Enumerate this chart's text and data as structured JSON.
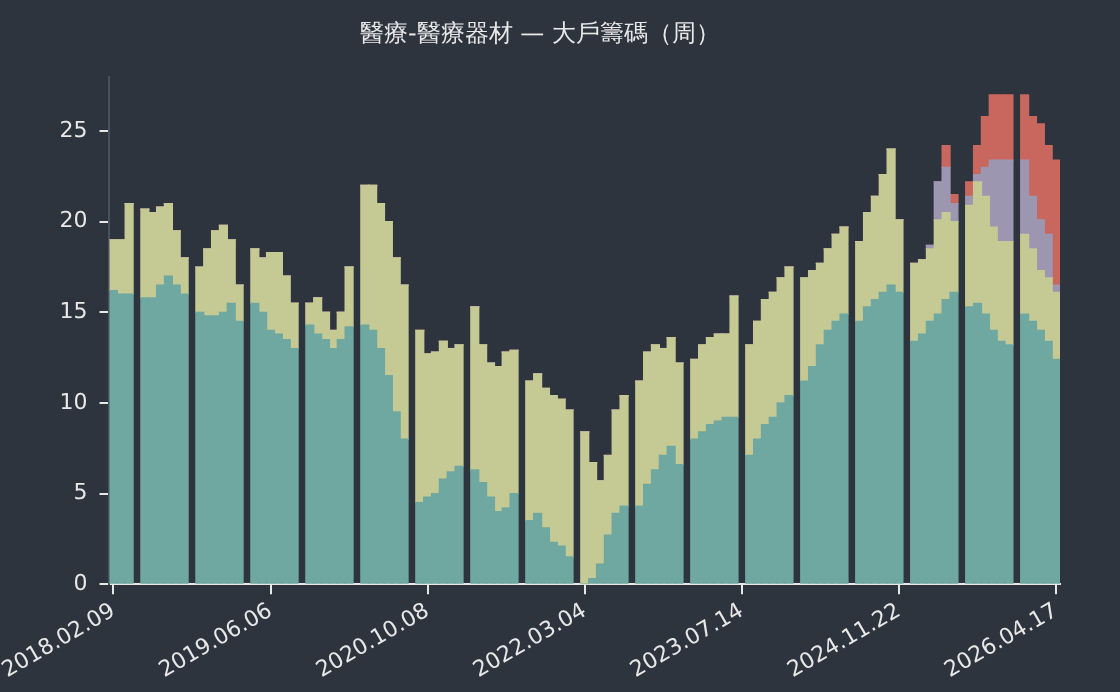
{
  "chart_data": {
    "type": "bar",
    "stacked": true,
    "title": "醫療-醫療器材 — 大戶籌碼（周）",
    "categories": [
      "2018.02.09",
      null,
      null,
      null,
      null,
      null,
      null,
      null,
      null,
      null,
      null,
      null,
      null,
      null,
      null,
      null,
      null,
      null,
      null,
      null,
      "2019.06.06",
      null,
      null,
      null,
      null,
      null,
      null,
      null,
      null,
      null,
      null,
      null,
      null,
      null,
      null,
      null,
      null,
      null,
      null,
      null,
      "2020.10.08",
      null,
      null,
      null,
      null,
      null,
      null,
      null,
      null,
      null,
      null,
      null,
      null,
      null,
      null,
      null,
      null,
      null,
      null,
      null,
      "2022.03.04",
      null,
      null,
      null,
      null,
      null,
      null,
      null,
      null,
      null,
      null,
      null,
      null,
      null,
      null,
      null,
      null,
      null,
      null,
      null,
      "2023.07.14",
      null,
      null,
      null,
      null,
      null,
      null,
      null,
      null,
      null,
      null,
      null,
      null,
      null,
      null,
      null,
      null,
      null,
      null,
      null,
      "2024.11.22",
      null,
      null,
      null,
      null,
      null,
      null,
      null,
      null,
      null,
      null,
      null,
      null,
      null,
      null,
      null,
      null,
      null,
      null,
      null,
      "2026.04.17"
    ],
    "series": [
      {
        "color": "#6fa8a0",
        "values": [
          16.2,
          16,
          16,
          null,
          15.8,
          15.8,
          16.5,
          17,
          16.5,
          16,
          null,
          15,
          14.8,
          14.8,
          15,
          15.5,
          14.5,
          null,
          15.5,
          15,
          14,
          13.8,
          13.5,
          13,
          null,
          14.3,
          13.8,
          13.5,
          13,
          13.5,
          14.2,
          null,
          14.3,
          14,
          13,
          11.5,
          9.5,
          8,
          null,
          4.5,
          4.8,
          5,
          5.8,
          6.2,
          6.5,
          null,
          6.3,
          5.6,
          4.8,
          4,
          4.2,
          5,
          null,
          3.5,
          3.9,
          3.1,
          2.3,
          2.1,
          1.5,
          null,
          0,
          0.3,
          1.1,
          2.7,
          3.9,
          4.3,
          null,
          4.3,
          5.5,
          6.3,
          7.1,
          7.6,
          6.6,
          null,
          8,
          8.4,
          8.8,
          9,
          9.2,
          9.2,
          null,
          7.1,
          8,
          8.8,
          9.2,
          10,
          10.4,
          null,
          11.2,
          12,
          13.2,
          14,
          14.5,
          14.9,
          null,
          14.5,
          15.3,
          15.7,
          16.1,
          16.5,
          16.1,
          null,
          13.4,
          13.8,
          14.5,
          14.9,
          15.7,
          16.1,
          null,
          15.3,
          15.5,
          14.9,
          14,
          13.4,
          13.2,
          null,
          14.9,
          14.5,
          14,
          13.4,
          12.4
        ]
      },
      {
        "color": "#c5c994",
        "values": [
          2.8,
          3,
          5,
          null,
          4.9,
          4.7,
          4.3,
          4,
          3,
          2,
          null,
          2.5,
          3.7,
          4.7,
          4.8,
          3.5,
          2,
          null,
          3,
          3,
          4.3,
          4.5,
          3.5,
          2.5,
          null,
          1.2,
          2,
          1.5,
          1,
          1.5,
          3.3,
          null,
          7.7,
          8,
          8,
          8.5,
          8.5,
          8.5,
          null,
          9.5,
          7.9,
          7.8,
          7.6,
          6.8,
          6.7,
          null,
          9,
          7.6,
          7.4,
          8,
          8.6,
          7.9,
          null,
          7.7,
          7.7,
          7.7,
          8.1,
          8.1,
          8.1,
          null,
          8.4,
          6.4,
          4.6,
          4.4,
          5.7,
          6.1,
          null,
          6.9,
          7.3,
          6.9,
          5.9,
          6,
          5.6,
          null,
          4.4,
          4.8,
          4.8,
          4.8,
          4.6,
          6.7,
          null,
          6.1,
          6.5,
          6.9,
          6.9,
          6.9,
          7.1,
          null,
          5.7,
          5.3,
          4.5,
          4.5,
          4.8,
          4.8,
          null,
          4.4,
          5.2,
          5.7,
          6.5,
          7.5,
          4,
          null,
          4.3,
          4.1,
          4,
          5.2,
          4.8,
          3.9,
          null,
          5.6,
          6.7,
          6.5,
          5.7,
          5.5,
          5.7,
          null,
          4.4,
          4,
          3.3,
          3.5,
          3.7
        ]
      },
      {
        "color": "#9c96b0",
        "values": [
          0,
          0,
          0,
          null,
          0,
          0,
          0,
          0,
          0,
          0,
          null,
          0,
          0,
          0,
          0,
          0,
          0,
          null,
          0,
          0,
          0,
          0,
          0,
          0,
          null,
          0,
          0,
          0,
          0,
          0,
          0,
          null,
          0,
          0,
          0,
          0,
          0,
          0,
          null,
          0,
          0,
          0,
          0,
          0,
          0,
          null,
          0,
          0,
          0,
          0,
          0,
          0,
          null,
          0,
          0,
          0,
          0,
          0,
          0,
          null,
          0,
          0,
          0,
          0,
          0,
          0,
          null,
          0,
          0,
          0,
          0,
          0,
          0,
          null,
          0,
          0,
          0,
          0,
          0,
          0,
          null,
          0,
          0,
          0,
          0,
          0,
          0,
          null,
          0,
          0,
          0,
          0,
          0,
          0,
          null,
          0,
          0,
          0,
          0,
          0,
          0,
          null,
          0,
          0,
          0.2,
          2.1,
          2.5,
          1,
          null,
          0.5,
          0.4,
          1.6,
          3.7,
          4.5,
          4.5,
          null,
          4.1,
          2.9,
          2.8,
          2.4,
          0.4
        ]
      },
      {
        "color": "#c8675e",
        "values": [
          0,
          0,
          0,
          null,
          0,
          0,
          0,
          0,
          0,
          0,
          null,
          0,
          0,
          0,
          0,
          0,
          0,
          null,
          0,
          0,
          0,
          0,
          0,
          0,
          null,
          0,
          0,
          0,
          0,
          0,
          0,
          null,
          0,
          0,
          0,
          0,
          0,
          0,
          null,
          0,
          0,
          0,
          0,
          0,
          0,
          null,
          0,
          0,
          0,
          0,
          0,
          0,
          null,
          0,
          0,
          0,
          0,
          0,
          0,
          null,
          0,
          0,
          0,
          0,
          0,
          0,
          null,
          0,
          0,
          0,
          0,
          0,
          0,
          null,
          0,
          0,
          0,
          0,
          0,
          0,
          null,
          0,
          0,
          0,
          0,
          0,
          0,
          null,
          0,
          0,
          0,
          0,
          0,
          0,
          null,
          0,
          0,
          0,
          0,
          0,
          0,
          null,
          0,
          0,
          0,
          0,
          1.2,
          0.5,
          null,
          0.8,
          1.6,
          2.8,
          3.6,
          3.6,
          3.6,
          null,
          3.6,
          4.4,
          5.3,
          4.9,
          6.9
        ]
      }
    ],
    "ylim": [
      0,
      28
    ],
    "yticks": [
      0,
      5,
      10,
      15,
      20,
      25
    ],
    "grid": false,
    "legend": false
  }
}
